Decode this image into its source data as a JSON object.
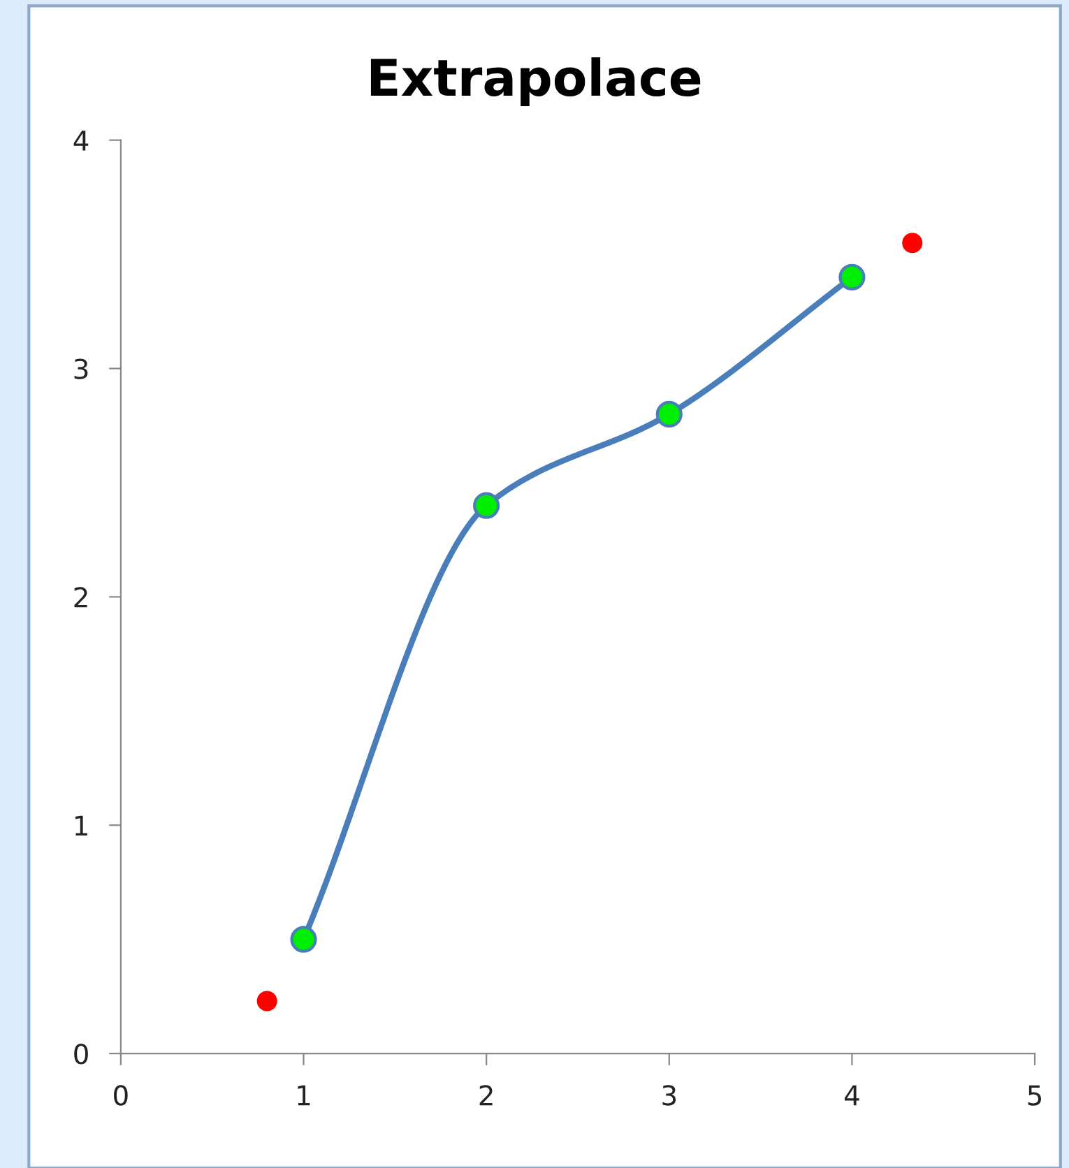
{
  "chart_data": {
    "type": "line",
    "title": "Extrapolace",
    "series": [
      {
        "x": [
          1,
          2,
          3,
          4
        ],
        "values": [
          0.5,
          2.4,
          2.8,
          3.4
        ],
        "color": "#4a7ebb",
        "colors": [
          "#00ee00",
          "#00ee00",
          "#00ee00",
          "#00ee00"
        ],
        "marker": "circle",
        "line_style": "solid"
      },
      {
        "type": "scatter",
        "x": [
          0.8,
          4.33
        ],
        "values": [
          0.23,
          3.55
        ],
        "color": "#ff0000",
        "marker": "circle"
      }
    ],
    "xlim": [
      0,
      5
    ],
    "xticks": [
      0,
      1,
      2,
      3,
      4,
      5
    ],
    "ylim": [
      0,
      4
    ],
    "yticks": [
      0,
      1,
      2,
      3,
      4
    ],
    "grid": false,
    "legend": false
  }
}
